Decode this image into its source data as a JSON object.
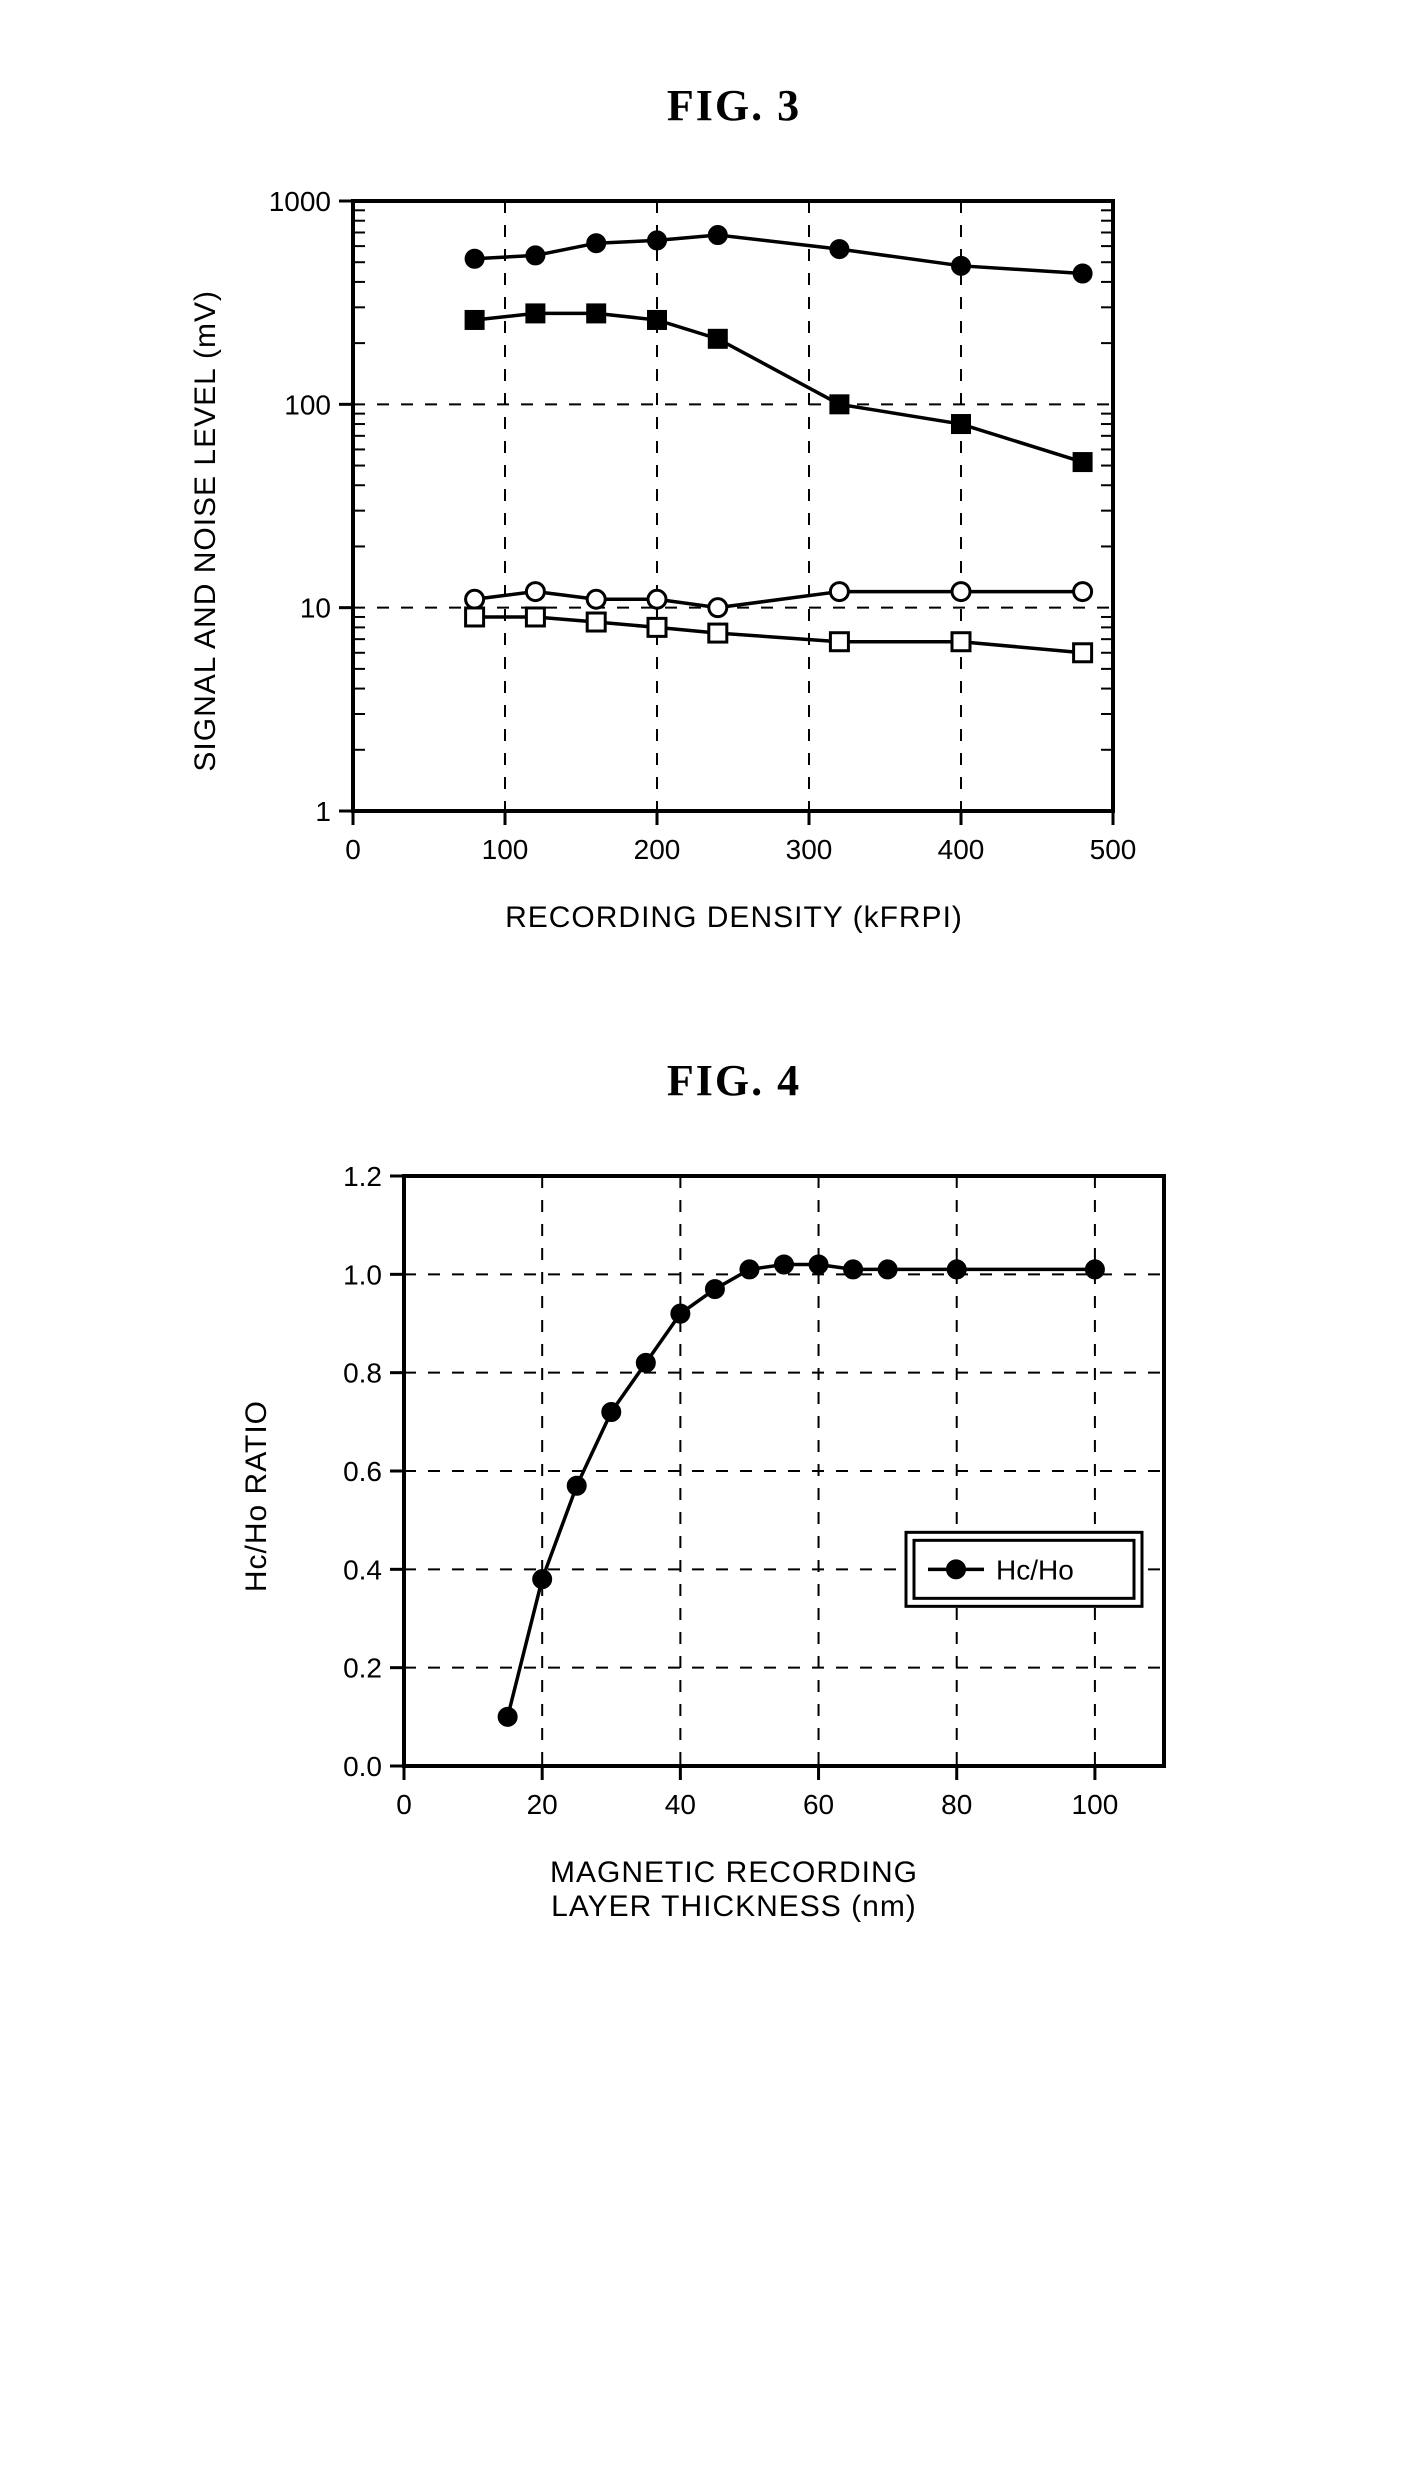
{
  "fig3": {
    "title": "FIG. 3",
    "type": "line-log-y",
    "xlabel": "RECORDING DENSITY (kFRPI)",
    "ylabel": "SIGNAL AND NOISE LEVEL (mV)",
    "xlim": [
      0,
      500
    ],
    "xticks": [
      0,
      100,
      200,
      300,
      400,
      500
    ],
    "ylim": [
      1,
      1000
    ],
    "yticks": [
      1,
      10,
      100,
      1000
    ],
    "colors": {
      "stroke": "#000000",
      "bg": "#ffffff",
      "grid": "#000000"
    },
    "fontsize": {
      "title": 44,
      "label": 30,
      "tick": 28
    },
    "frame_width": 4,
    "line_width": 3.5,
    "marker_size": 9,
    "series": [
      {
        "marker": "circle-filled",
        "x": [
          80,
          120,
          160,
          200,
          240,
          320,
          400,
          480
        ],
        "y": [
          520,
          540,
          620,
          640,
          680,
          580,
          480,
          440
        ]
      },
      {
        "marker": "square-filled",
        "x": [
          80,
          120,
          160,
          200,
          240,
          320,
          400,
          480
        ],
        "y": [
          260,
          280,
          280,
          260,
          210,
          100,
          80,
          52
        ]
      },
      {
        "marker": "circle-open",
        "x": [
          80,
          120,
          160,
          200,
          240,
          320,
          400,
          480
        ],
        "y": [
          11,
          12,
          11,
          11,
          10,
          12,
          12,
          12
        ]
      },
      {
        "marker": "square-open",
        "x": [
          80,
          120,
          160,
          200,
          240,
          320,
          400,
          480
        ],
        "y": [
          9,
          9,
          8.5,
          8,
          7.5,
          6.8,
          6.8,
          6
        ]
      }
    ]
  },
  "fig4": {
    "title": "FIG. 4",
    "type": "line",
    "xlabel_line1": "MAGNETIC RECORDING",
    "xlabel_line2": "LAYER THICKNESS (nm)",
    "ylabel": "Hc/Ho RATIO",
    "xlim": [
      0,
      110
    ],
    "xticks": [
      0,
      20,
      40,
      60,
      80,
      100
    ],
    "ylim": [
      0.0,
      1.2
    ],
    "yticks": [
      "0.0",
      "0.2",
      "0.4",
      "0.6",
      "0.8",
      "1.0",
      "1.2"
    ],
    "ytick_vals": [
      0.0,
      0.2,
      0.4,
      0.6,
      0.8,
      1.0,
      1.2
    ],
    "colors": {
      "stroke": "#000000",
      "bg": "#ffffff",
      "grid": "#000000"
    },
    "fontsize": {
      "title": 44,
      "label": 30,
      "tick": 28
    },
    "frame_width": 4,
    "line_width": 3.5,
    "marker_size": 9,
    "legend": {
      "label": "Hc/Ho",
      "marker": "circle-filled",
      "frame": true
    },
    "series": [
      {
        "marker": "circle-filled",
        "x": [
          15,
          20,
          25,
          30,
          35,
          40,
          45,
          50,
          55,
          60,
          65,
          70,
          80,
          100
        ],
        "y": [
          0.1,
          0.38,
          0.57,
          0.72,
          0.82,
          0.92,
          0.97,
          1.01,
          1.02,
          1.02,
          1.01,
          1.01,
          1.01,
          1.01
        ]
      }
    ]
  }
}
